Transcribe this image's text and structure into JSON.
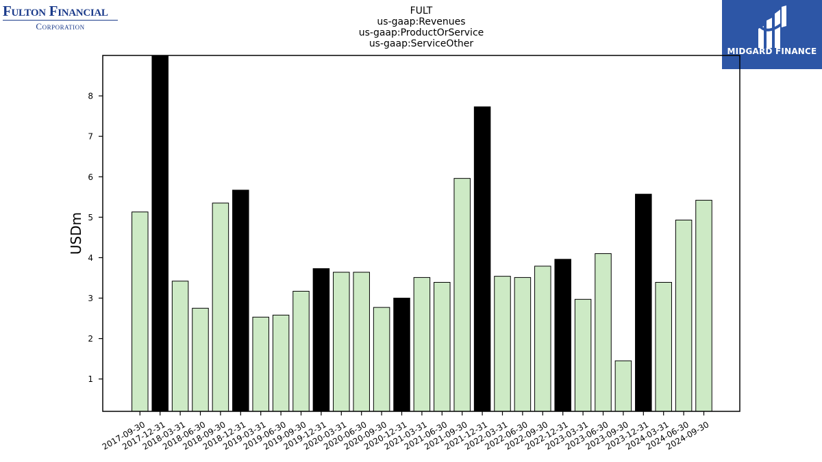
{
  "logos": {
    "left": {
      "line1": "Fulton Financial",
      "line2": "Corporation"
    },
    "right": {
      "text": "MIDGARD FINANCE"
    }
  },
  "colors": {
    "regular_bar": "#cdeac5",
    "highlight_bar": "#000000",
    "bar_edge": "#000000",
    "brand_right": "#2d56a6",
    "brand_left": "#1a3a8a"
  },
  "chart_data": {
    "type": "bar",
    "title_lines": [
      "FULT",
      "us-gaap:Revenues",
      "us-gaap:ProductOrService",
      "us-gaap:ServiceOther"
    ],
    "ylabel": "USDm",
    "xlabel": "",
    "ylim": [
      0.2,
      9.0
    ],
    "yticks": [
      1,
      2,
      3,
      4,
      5,
      6,
      7,
      8
    ],
    "grid": false,
    "categories": [
      "2017-09-30",
      "2017-12-31",
      "2018-03-31",
      "2018-06-30",
      "2018-09-30",
      "2018-12-31",
      "2019-03-31",
      "2019-06-30",
      "2019-09-30",
      "2019-12-31",
      "2020-03-31",
      "2020-06-30",
      "2020-09-30",
      "2020-12-31",
      "2021-03-31",
      "2021-06-30",
      "2021-09-30",
      "2021-12-31",
      "2022-03-31",
      "2022-06-30",
      "2022-09-30",
      "2022-12-31",
      "2023-03-31",
      "2023-06-30",
      "2023-09-30",
      "2023-12-31",
      "2024-03-31",
      "2024-06-30",
      "2024-09-30"
    ],
    "values": [
      5.13,
      9.0,
      3.42,
      2.75,
      5.35,
      5.67,
      2.53,
      2.58,
      3.17,
      3.73,
      3.64,
      3.64,
      2.77,
      3.0,
      3.51,
      3.39,
      5.96,
      7.73,
      3.54,
      3.51,
      3.79,
      3.96,
      2.97,
      4.1,
      1.45,
      5.57,
      3.39,
      4.93,
      5.42
    ],
    "highlight": [
      false,
      true,
      false,
      false,
      false,
      true,
      false,
      false,
      false,
      true,
      false,
      false,
      false,
      true,
      false,
      false,
      false,
      true,
      false,
      false,
      false,
      true,
      false,
      false,
      false,
      true,
      false,
      false,
      false
    ]
  }
}
